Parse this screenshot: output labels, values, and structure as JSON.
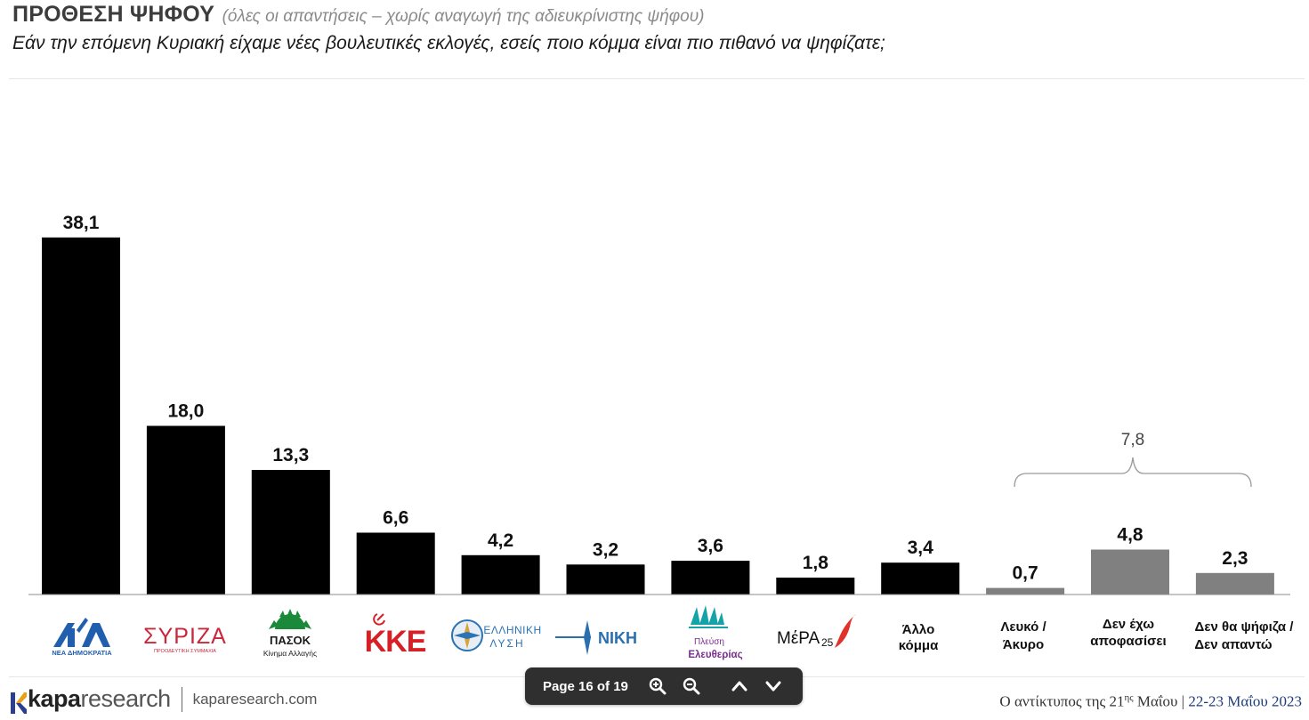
{
  "header": {
    "title": "ΠΡΟΘΕΣΗ ΨΗΦΟΥ",
    "title_note": "(όλες οι απαντήσεις – χωρίς αναγωγή της αδιευκρίνιστης ψήφου)",
    "question": "Εάν την επόμενη Κυριακή είχαμε νέες βουλευτικές εκλογές, εσείς ποιο κόμμα είναι πιο πιθανό να ψηφίζατε;"
  },
  "chart_data": {
    "type": "bar",
    "categories": [
      "ΝΔ",
      "ΣΥΡΙΖΑ",
      "ΠΑΣΟΚ",
      "ΚΚΕ",
      "ΕΛΛΗΝΙΚΗ ΛΥΣΗ",
      "ΝΙΚΗ",
      "Πλεύση Ελευθερίας",
      "ΜέΡΑ25",
      "Άλλο κόμμα",
      "Λευκό / Άκυρο",
      "Δεν έχω αποφασίσει",
      "Δεν θα ψήφιζα / Δεν απαντώ"
    ],
    "values": [
      38.1,
      18.0,
      13.3,
      6.6,
      4.2,
      3.2,
      3.6,
      1.8,
      3.4,
      0.7,
      4.8,
      2.3
    ],
    "value_labels": [
      "38,1",
      "18,0",
      "13,3",
      "6,6",
      "4,2",
      "3,2",
      "3,6",
      "1,8",
      "3,4",
      "0,7",
      "4,8",
      "2,3"
    ],
    "bar_colors": [
      "#000000",
      "#000000",
      "#000000",
      "#000000",
      "#000000",
      "#000000",
      "#000000",
      "#000000",
      "#000000",
      "#808080",
      "#808080",
      "#808080"
    ],
    "bracket": {
      "from_index": 9,
      "to_index": 11,
      "label": "7,8"
    },
    "ylim": [
      0,
      40
    ],
    "grid": false,
    "legend": "none"
  },
  "category_labels": {
    "nd": {
      "text": "ΝΕΑ ΔΗΜΟΚΡΑΤΙΑ",
      "color": "#1f5fae"
    },
    "syriza": {
      "text": "ΣΥΡΙΖΑ",
      "sub": "ΠΡΟΟΔΕΥΤΙΚΗ ΣΥΜΜΑΧΙΑ",
      "color": "#c8283a"
    },
    "pasok": {
      "text": "ΠΑΣΟΚ",
      "sub": "Κίνημα Αλλαγής",
      "color": "#1a8a3a"
    },
    "kke": {
      "text": "ΚΚΕ",
      "color": "#d71f26"
    },
    "elliniki": {
      "line1": "ΕΛΛΗΝΙΚΗ",
      "line2": "ΛΥΣΗ",
      "color": "#2a73b5"
    },
    "niki": {
      "text": "ΝΙΚΗ",
      "color": "#2a6fb0"
    },
    "plefsi": {
      "line1": "Πλεύση",
      "line2": "Ελευθερίας",
      "color": "#7a2e8f",
      "accent": "#16a3a8"
    },
    "mera25": {
      "text": "ΜέΡΑ",
      "num": "25",
      "color": "#111111",
      "accent": "#e0312b"
    },
    "allo": {
      "line1": "Άλλο",
      "line2": "κόμμα"
    },
    "lefko": {
      "line1": "Λευκό /",
      "line2": "Άκυρο"
    },
    "den_exo": {
      "line1": "Δεν έχω",
      "line2": "αποφασίσει"
    },
    "den_tha": {
      "line1": "Δεν θα ψήφιζα /",
      "line2": "Δεν απαντώ"
    }
  },
  "footer": {
    "brand_part1": "kapa",
    "brand_part2": "research",
    "site": "kaparesearch.com",
    "right_prefix": "Ο αντίκτυπος της 21",
    "right_sup": "ης",
    "right_after": " Μαΐου | ",
    "dates": "22-23 Μαΐου 2023"
  },
  "pager": {
    "text": "Page 16 of 19"
  }
}
